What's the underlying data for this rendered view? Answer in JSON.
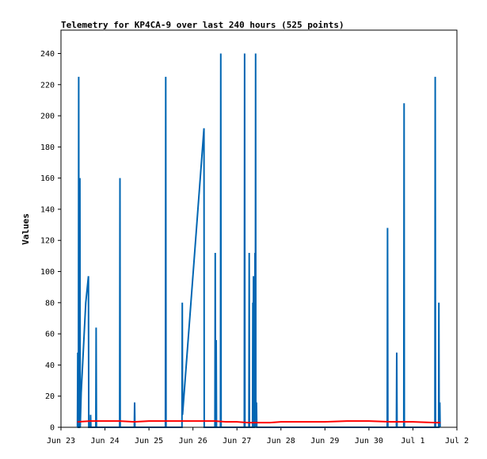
{
  "chart_data": {
    "type": "line",
    "title": "Telemetry for KP4CA-9 over last 240 hours (525 points)",
    "ylabel": "Values",
    "xlabel": "",
    "xlim": [
      "2025-06-23",
      "2025-07-02"
    ],
    "ylim": [
      0,
      255
    ],
    "x_tick_labels": [
      "Jun 23",
      "Jun 24",
      "Jun 25",
      "Jun 26",
      "Jun 27",
      "Jun 28",
      "Jun 29",
      "Jun 30",
      "Jul 1",
      "Jul 2"
    ],
    "y_ticks": [
      0,
      20,
      40,
      60,
      80,
      100,
      120,
      140,
      160,
      180,
      200,
      220,
      240
    ],
    "grid": false,
    "legend": "none",
    "series": [
      {
        "color": "#0066b3",
        "points": [
          [
            "2025-06-23 09:00",
            0
          ],
          [
            "2025-06-23 09:10",
            48
          ],
          [
            "2025-06-23 09:20",
            0
          ],
          [
            "2025-06-23 09:30",
            0
          ],
          [
            "2025-06-23 09:40",
            225
          ],
          [
            "2025-06-23 09:50",
            0
          ],
          [
            "2025-06-23 10:10",
            0
          ],
          [
            "2025-06-23 10:20",
            160
          ],
          [
            "2025-06-23 10:30",
            0
          ],
          [
            "2025-06-23 11:00",
            22
          ],
          [
            "2025-06-23 13:30",
            80
          ],
          [
            "2025-06-23 15:00",
            97
          ],
          [
            "2025-06-23 15:10",
            0
          ],
          [
            "2025-06-23 16:00",
            0
          ],
          [
            "2025-06-23 16:10",
            8
          ],
          [
            "2025-06-23 16:20",
            0
          ],
          [
            "2025-06-23 19:00",
            0
          ],
          [
            "2025-06-23 19:10",
            64
          ],
          [
            "2025-06-23 19:20",
            0
          ],
          [
            "2025-06-24 08:00",
            0
          ],
          [
            "2025-06-24 08:10",
            160
          ],
          [
            "2025-06-24 08:20",
            0
          ],
          [
            "2025-06-24 16:00",
            0
          ],
          [
            "2025-06-24 16:10",
            16
          ],
          [
            "2025-06-24 16:20",
            0
          ],
          [
            "2025-06-25 09:00",
            0
          ],
          [
            "2025-06-25 09:10",
            225
          ],
          [
            "2025-06-25 09:20",
            0
          ],
          [
            "2025-06-25 18:00",
            0
          ],
          [
            "2025-06-25 18:10",
            80
          ],
          [
            "2025-06-25 18:20",
            8
          ],
          [
            "2025-06-26 06:00",
            192
          ],
          [
            "2025-06-26 06:10",
            0
          ],
          [
            "2025-06-26 12:00",
            0
          ],
          [
            "2025-06-26 12:10",
            112
          ],
          [
            "2025-06-26 12:20",
            0
          ],
          [
            "2025-06-26 12:40",
            56
          ],
          [
            "2025-06-26 12:50",
            0
          ],
          [
            "2025-06-26 15:00",
            0
          ],
          [
            "2025-06-26 15:10",
            240
          ],
          [
            "2025-06-26 15:20",
            0
          ],
          [
            "2025-06-27 04:00",
            0
          ],
          [
            "2025-06-27 04:10",
            240
          ],
          [
            "2025-06-27 04:20",
            0
          ],
          [
            "2025-06-27 06:30",
            0
          ],
          [
            "2025-06-27 06:40",
            112
          ],
          [
            "2025-06-27 06:50",
            0
          ],
          [
            "2025-06-27 08:30",
            0
          ],
          [
            "2025-06-27 08:40",
            80
          ],
          [
            "2025-06-27 08:50",
            0
          ],
          [
            "2025-06-27 09:00",
            97
          ],
          [
            "2025-06-27 09:10",
            0
          ],
          [
            "2025-06-27 09:40",
            0
          ],
          [
            "2025-06-27 09:50",
            112
          ],
          [
            "2025-06-27 10:00",
            0
          ],
          [
            "2025-06-27 10:10",
            240
          ],
          [
            "2025-06-27 10:20",
            0
          ],
          [
            "2025-06-27 10:40",
            16
          ],
          [
            "2025-06-27 10:50",
            0
          ],
          [
            "2025-06-30 10:00",
            0
          ],
          [
            "2025-06-30 10:10",
            128
          ],
          [
            "2025-06-30 10:20",
            0
          ],
          [
            "2025-06-30 15:00",
            0
          ],
          [
            "2025-06-30 15:10",
            48
          ],
          [
            "2025-06-30 15:20",
            0
          ],
          [
            "2025-06-30 19:00",
            0
          ],
          [
            "2025-06-30 19:10",
            208
          ],
          [
            "2025-06-30 19:20",
            0
          ],
          [
            "2025-07-01 12:00",
            0
          ],
          [
            "2025-07-01 12:10",
            225
          ],
          [
            "2025-07-01 12:20",
            0
          ],
          [
            "2025-07-01 14:00",
            0
          ],
          [
            "2025-07-01 14:10",
            80
          ],
          [
            "2025-07-01 14:20",
            0
          ],
          [
            "2025-07-01 14:40",
            16
          ],
          [
            "2025-07-01 14:50",
            0
          ]
        ]
      },
      {
        "color": "#ff0000",
        "points": [
          [
            "2025-06-23 09:00",
            3.5
          ],
          [
            "2025-06-23 16:00",
            4.0
          ],
          [
            "2025-06-24 08:00",
            4.0
          ],
          [
            "2025-06-24 16:00",
            3.5
          ],
          [
            "2025-06-25 00:00",
            4.0
          ],
          [
            "2025-06-25 12:00",
            4.0
          ],
          [
            "2025-06-26 00:00",
            4.0
          ],
          [
            "2025-06-26 12:00",
            4.0
          ],
          [
            "2025-06-26 18:00",
            3.5
          ],
          [
            "2025-06-27 00:00",
            3.5
          ],
          [
            "2025-06-27 06:00",
            3.0
          ],
          [
            "2025-06-27 12:00",
            3.0
          ],
          [
            "2025-06-27 18:00",
            3.0
          ],
          [
            "2025-06-28 00:00",
            3.5
          ],
          [
            "2025-06-29 00:00",
            3.5
          ],
          [
            "2025-06-29 12:00",
            4.0
          ],
          [
            "2025-06-30 00:00",
            4.0
          ],
          [
            "2025-06-30 12:00",
            3.5
          ],
          [
            "2025-07-01 00:00",
            3.5
          ],
          [
            "2025-07-01 12:00",
            3.0
          ],
          [
            "2025-07-01 15:00",
            3.0
          ]
        ]
      },
      {
        "color": "#000000",
        "points": [
          [
            "2025-06-23 09:00",
            0
          ],
          [
            "2025-07-01 15:00",
            0
          ]
        ]
      }
    ]
  }
}
